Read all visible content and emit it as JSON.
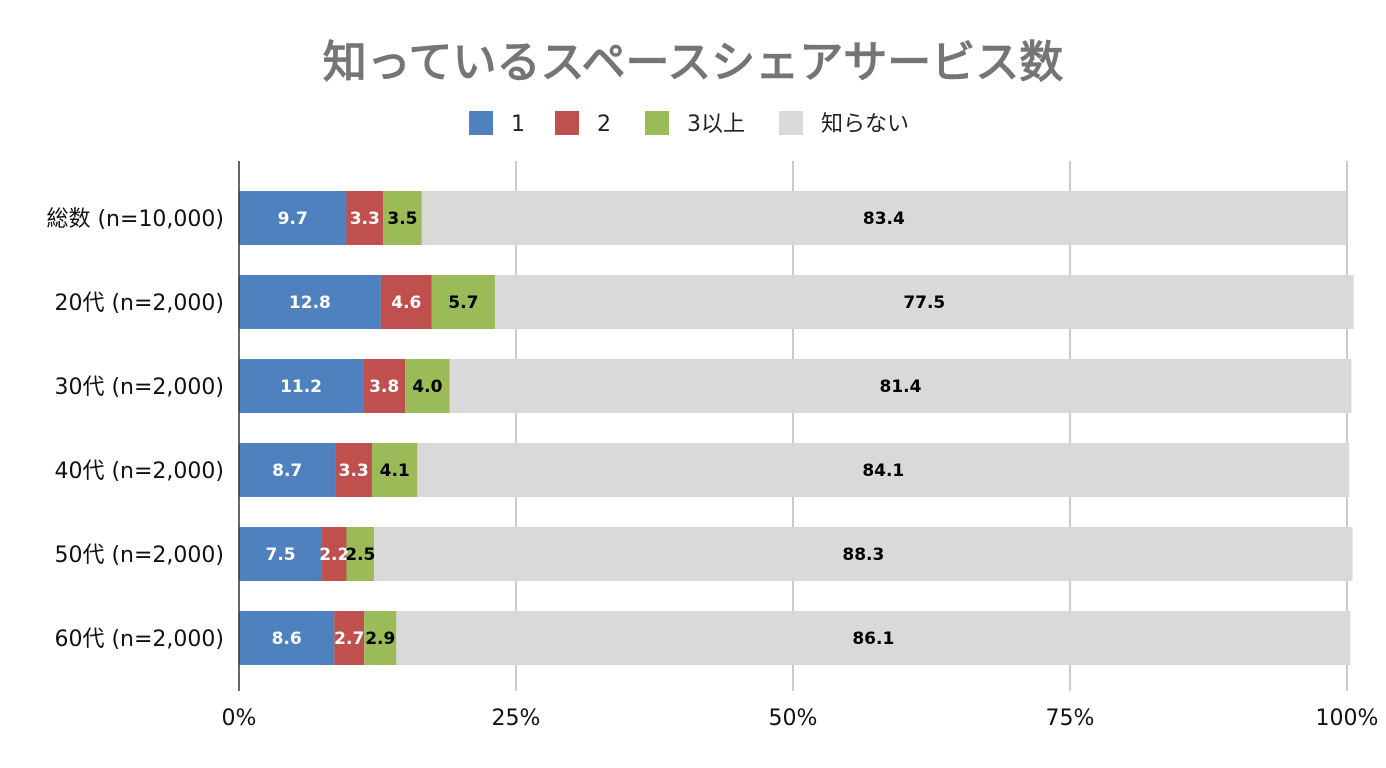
{
  "chart_data": {
    "type": "bar",
    "orientation": "horizontal",
    "stacked": true,
    "title": "知っているスペースシェアサービス数",
    "categories": [
      "総数 (n=10,000)",
      "20代 (n=2,000)",
      "30代 (n=2,000)",
      "40代 (n=2,000)",
      "50代 (n=2,000)",
      "60代 (n=2,000)"
    ],
    "series": [
      {
        "name": "1",
        "color": "#4e81bd",
        "label_color": "#ffffff",
        "values": [
          9.7,
          12.8,
          11.2,
          8.7,
          7.5,
          8.6
        ]
      },
      {
        "name": "2",
        "color": "#c0504d",
        "label_color": "#ffffff",
        "values": [
          3.3,
          4.6,
          3.8,
          3.3,
          2.2,
          2.7
        ]
      },
      {
        "name": "3以上",
        "color": "#9bbb59",
        "label_color": "#000000",
        "values": [
          3.5,
          5.7,
          4.0,
          4.1,
          2.5,
          2.9
        ]
      },
      {
        "name": "知らない",
        "color": "#d9d9d9",
        "label_color": "#000000",
        "values": [
          83.4,
          77.5,
          81.4,
          84.1,
          88.3,
          86.1
        ]
      }
    ],
    "xlim": [
      0,
      100
    ],
    "x_ticks": [
      "0%",
      "25%",
      "50%",
      "75%",
      "100%"
    ],
    "x_tick_values": [
      0,
      25,
      50,
      75,
      100
    ],
    "grid": true,
    "legend_position": "top-center"
  }
}
